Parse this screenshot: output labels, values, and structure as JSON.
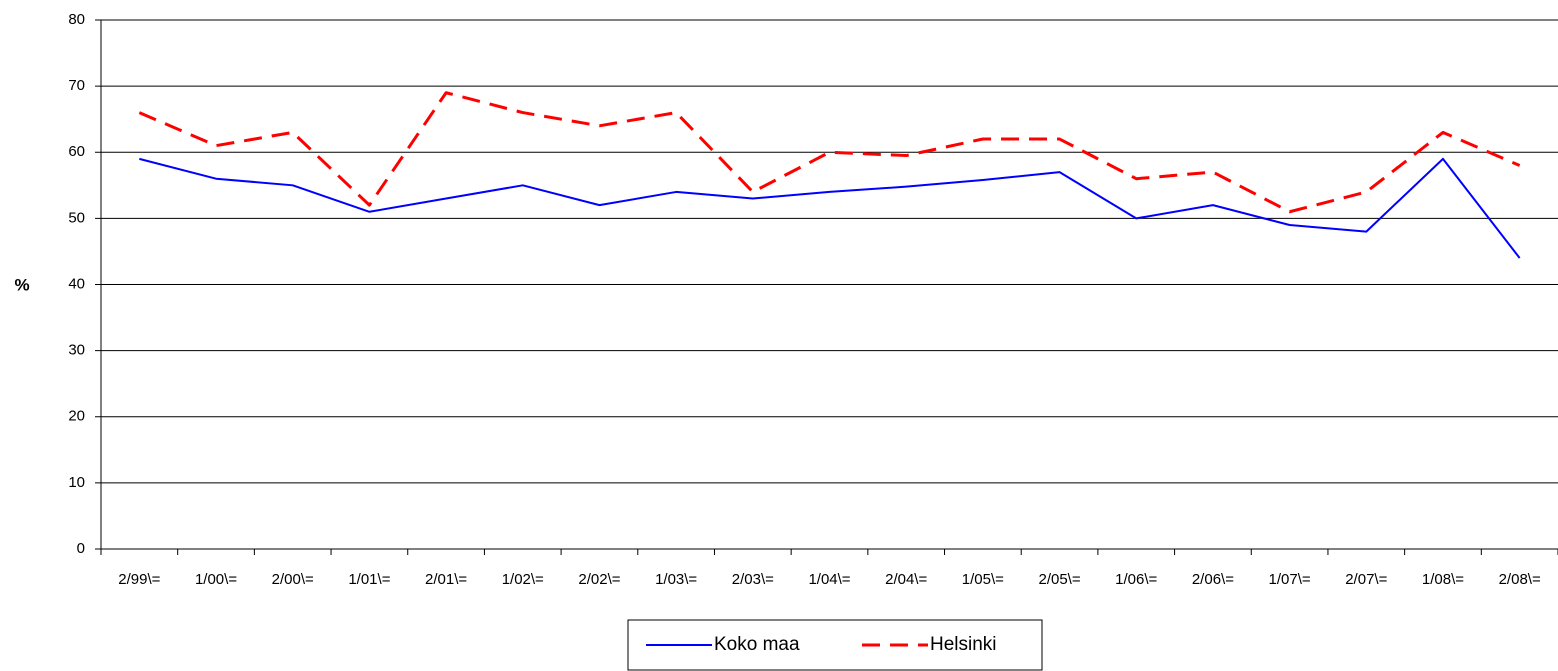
{
  "chart_data": {
    "type": "line",
    "y_label": "%",
    "categories": [
      "2/99\\=",
      "1/00\\=",
      "2/00\\=",
      "1/01\\=",
      "2/01\\=",
      "1/02\\=",
      "2/02\\=",
      "1/03\\=",
      "2/03\\=",
      "1/04\\=",
      "2/04\\=",
      "1/05\\=",
      "2/05\\=",
      "1/06\\=",
      "2/06\\=",
      "1/07\\=",
      "2/07\\=",
      "1/08\\=",
      "2/08\\="
    ],
    "series": [
      {
        "name": "Koko maa",
        "color": "#0000ff",
        "dashed": false,
        "values": [
          59,
          56,
          55,
          51,
          53,
          55,
          52,
          54,
          53,
          54,
          54.8,
          55.8,
          57,
          50,
          52,
          49,
          48,
          59,
          44
        ]
      },
      {
        "name": "Helsinki",
        "color": "#ff0000",
        "dashed": true,
        "values": [
          66,
          61,
          63,
          52,
          69,
          66,
          64,
          66,
          54,
          60,
          59.5,
          62,
          62,
          56,
          57,
          51,
          54,
          63,
          58
        ]
      }
    ],
    "ylim": [
      0,
      80
    ],
    "yticks": [
      0,
      10,
      20,
      30,
      40,
      50,
      60,
      70,
      80
    ],
    "grid": true,
    "legend": "bottom"
  }
}
